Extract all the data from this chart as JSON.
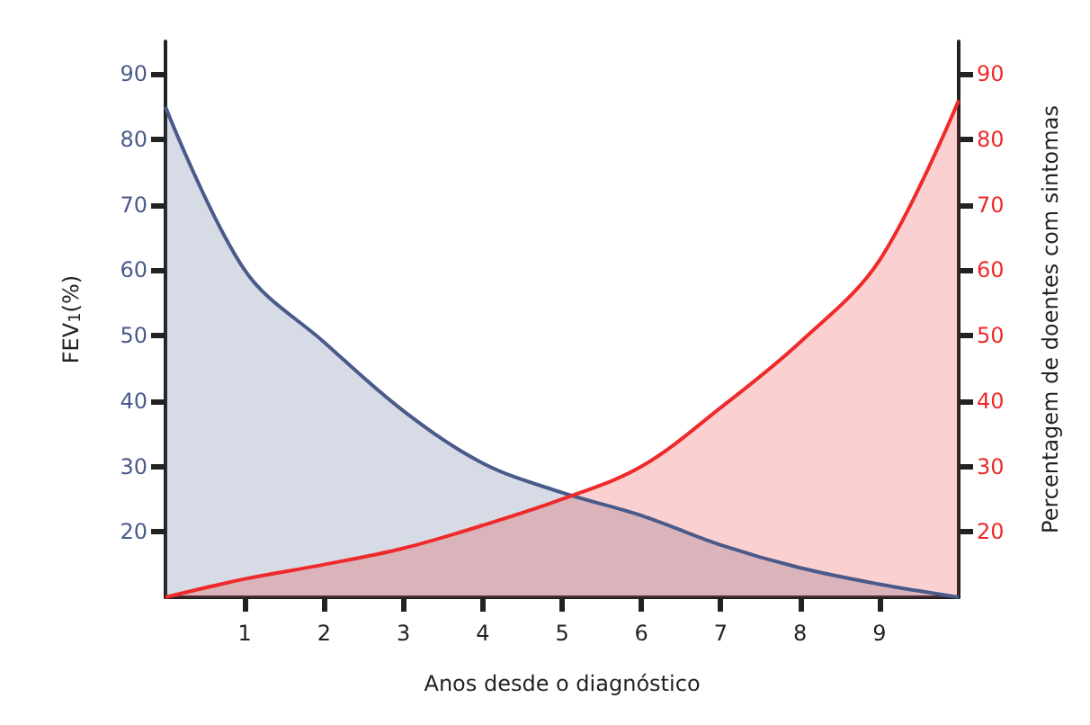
{
  "chart_data": {
    "type": "area",
    "xlabel": "Anos desde o diagnóstico",
    "ylabel": "FEV$_{1}$(%)",
    "y2label": "Percentagem de doentes com sintomas",
    "x": [
      0,
      1,
      2,
      3,
      4,
      5,
      6,
      7,
      8,
      9,
      10
    ],
    "series": [
      {
        "color": "#4a5a8a",
        "values": [
          85,
          60,
          49,
          38.5,
          30.5,
          26,
          22.5,
          18,
          14.5,
          12,
          10
        ]
      },
      {
        "color": "#ee2a2a",
        "axis": "y2",
        "values": [
          10,
          12.8,
          15,
          17.5,
          21,
          25,
          30,
          39,
          49,
          61.5,
          86
        ]
      }
    ],
    "xlim": [
      0,
      10
    ],
    "xticks": [
      1,
      2,
      3,
      4,
      5,
      6,
      7,
      8,
      9
    ],
    "ylim": [
      10,
      95
    ],
    "yticks": [
      20,
      30,
      40,
      50,
      60,
      70,
      80,
      90
    ],
    "y2lim": [
      10,
      95
    ],
    "y2ticks": [
      20,
      30,
      40,
      50,
      60,
      70,
      80,
      90
    ],
    "marker": "none",
    "grid": false
  }
}
